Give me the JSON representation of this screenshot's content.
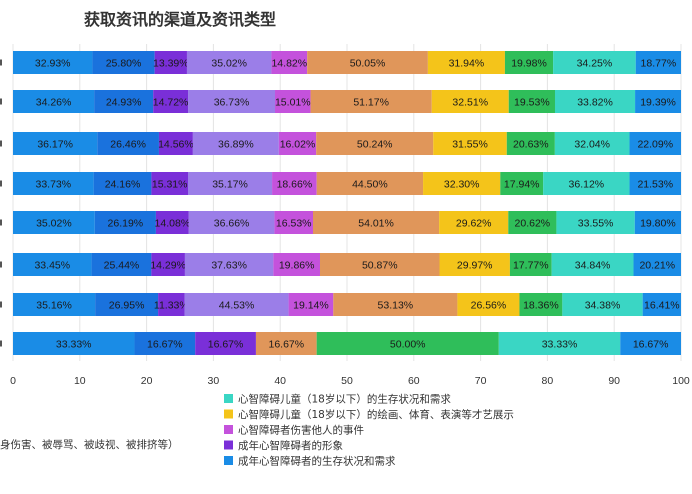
{
  "chart_data": {
    "type": "bar",
    "orientation": "horizontal",
    "title": "获取资讯的渠道及资讯类型",
    "xlim": [
      0,
      100
    ],
    "xticks": [
      "0",
      "10",
      "20",
      "30",
      "40",
      "50",
      "60",
      "70",
      "80",
      "90",
      "100"
    ],
    "stacked": true,
    "grid": true,
    "rows": [
      {
        "labels": [
          "32.93%",
          "25.80%",
          "13.39%",
          "35.02%",
          "14.82%",
          "50.05%",
          "31.94%",
          "19.98%",
          "34.25%",
          "18.77%"
        ]
      },
      {
        "labels": [
          "34.26%",
          "24.93%",
          "14.72%",
          "36.73%",
          "15.01%",
          "51.17%",
          "32.51%",
          "19.53%",
          "33.82%",
          "19.39%"
        ]
      },
      {
        "labels": [
          "36.17%",
          "26.46%",
          "14.56%",
          "36.89%",
          "16.02%",
          "50.24%",
          "31.55%",
          "20.63%",
          "32.04%",
          "22.09%"
        ]
      },
      {
        "labels": [
          "33.73%",
          "24.16%",
          "15.31%",
          "35.17%",
          "18.66%",
          "44.50%",
          "32.30%",
          "17.94%",
          "36.12%",
          "21.53%"
        ]
      },
      {
        "labels": [
          "35.02%",
          "26.19%",
          "14.08%",
          "36.66%",
          "16.53%",
          "54.01%",
          "29.62%",
          "20.62%",
          "33.55%",
          "19.80%"
        ]
      },
      {
        "labels": [
          "33.45%",
          "25.44%",
          "14.29%",
          "37.63%",
          "19.86%",
          "50.87%",
          "29.97%",
          "17.77%",
          "34.84%",
          "20.21%"
        ]
      },
      {
        "labels": [
          "35.16%",
          "26.95%",
          "11.33%",
          "44.53%",
          "19.14%",
          "53.13%",
          "26.56%",
          "18.36%",
          "34.38%",
          "16.41%"
        ]
      },
      {
        "labels": [
          "33.33%",
          "16.67%",
          "16.67%",
          "16.67%",
          "50.00%",
          "33.33%",
          "16.67%"
        ]
      }
    ],
    "segment_colors": [
      "#1a8ce6",
      "#1a72dd",
      "#7a2fd8",
      "#9b7ee8",
      "#c452dc",
      "#e0965a",
      "#f4c41a",
      "#2fbe5a",
      "#3ad6c4",
      "#1a8ce6"
    ],
    "last_row_colors": [
      "#1a8ce6",
      "#1a72dd",
      "#7a2fd8",
      "#e0965a",
      "#2fbe5a",
      "#3ad6c4",
      "#1a8ce6"
    ],
    "last_row_widths": [
      18.24,
      9.12,
      9.12,
      9.12,
      27.35,
      18.24,
      9.12
    ],
    "legend": [
      {
        "label": "心智障碍儿童（18岁以下）的生存状况和需求",
        "color": "#3ad6c4"
      },
      {
        "label": "心智障碍儿童（18岁以下）的绘画、体育、表演等才艺展示",
        "color": "#f4c41a"
      },
      {
        "label": "心智障碍者伤害他人的事件",
        "color": "#c452dc"
      },
      {
        "label": "成年心智障碍者的形象",
        "color": "#7a2fd8"
      },
      {
        "label": "成年心智障碍者的生存状况和需求",
        "color": "#1a8ce6"
      }
    ],
    "left_legend_fragment": "身伤害、被辱骂、被歧视、被排挤等）"
  }
}
